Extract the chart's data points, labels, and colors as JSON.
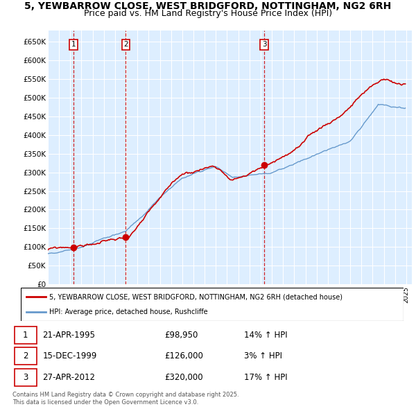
{
  "title": "5, YEWBARROW CLOSE, WEST BRIDGFORD, NOTTINGHAM, NG2 6RH",
  "subtitle": "Price paid vs. HM Land Registry's House Price Index (HPI)",
  "ylim": [
    0,
    680000
  ],
  "yticks": [
    0,
    50000,
    100000,
    150000,
    200000,
    250000,
    300000,
    350000,
    400000,
    450000,
    500000,
    550000,
    600000,
    650000
  ],
  "ytick_labels": [
    "£0",
    "£50K",
    "£100K",
    "£150K",
    "£200K",
    "£250K",
    "£300K",
    "£350K",
    "£400K",
    "£450K",
    "£500K",
    "£550K",
    "£600K",
    "£650K"
  ],
  "xlim_start": 1993,
  "xlim_end": 2025.5,
  "sale_dates": [
    1995.31,
    1999.96,
    2012.32
  ],
  "sale_prices": [
    98950,
    126000,
    320000
  ],
  "sale_labels": [
    "1",
    "2",
    "3"
  ],
  "vline_color": "#cc0000",
  "sale_dot_color": "#cc0000",
  "red_line_color": "#cc0000",
  "blue_line_color": "#6699cc",
  "blue_fill_color": "#aabbdd",
  "plot_bg_color": "#ddeeff",
  "grid_color": "#ffffff",
  "legend_entries": [
    "5, YEWBARROW CLOSE, WEST BRIDGFORD, NOTTINGHAM, NG2 6RH (detached house)",
    "HPI: Average price, detached house, Rushcliffe"
  ],
  "legend_colors": [
    "#cc0000",
    "#6699cc"
  ],
  "table_rows": [
    {
      "num": "1",
      "date": "21-APR-1995",
      "price": "£98,950",
      "hpi": "14% ↑ HPI"
    },
    {
      "num": "2",
      "date": "15-DEC-1999",
      "price": "£126,000",
      "hpi": "3% ↑ HPI"
    },
    {
      "num": "3",
      "date": "27-APR-2012",
      "price": "£320,000",
      "hpi": "17% ↑ HPI"
    }
  ],
  "footer": "Contains HM Land Registry data © Crown copyright and database right 2025.\nThis data is licensed under the Open Government Licence v3.0.",
  "title_fontsize": 10,
  "subtitle_fontsize": 9
}
